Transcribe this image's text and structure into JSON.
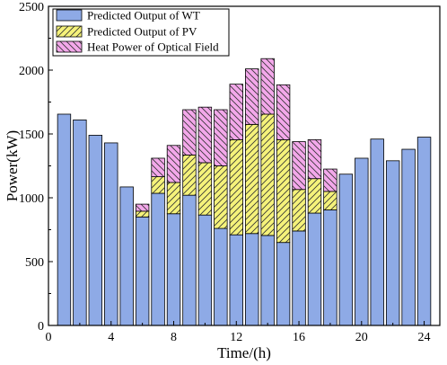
{
  "chart_data": {
    "type": "bar",
    "stacked": true,
    "title": "",
    "xlabel": "Time/(h)",
    "ylabel": "Power(kW)",
    "xlim": [
      0,
      25
    ],
    "ylim": [
      0,
      2500
    ],
    "xticks": [
      0,
      4,
      8,
      12,
      16,
      20,
      24
    ],
    "yticks": [
      0,
      500,
      1000,
      1500,
      2000,
      2500
    ],
    "grid": false,
    "legend_position": "top-left",
    "x": [
      1,
      2,
      3,
      4,
      5,
      6,
      7,
      8,
      9,
      10,
      11,
      12,
      13,
      14,
      15,
      16,
      17,
      18,
      19,
      20,
      21,
      22,
      23,
      24
    ],
    "series": [
      {
        "name": "Predicted Output of WT",
        "color": "#8eaae6",
        "pattern": "solid",
        "values": [
          1655,
          1610,
          1490,
          1430,
          1085,
          850,
          1035,
          875,
          1020,
          865,
          760,
          710,
          720,
          705,
          650,
          740,
          880,
          905,
          1185,
          1310,
          1460,
          1290,
          1380,
          1475
        ]
      },
      {
        "name": "Predicted Output of PV",
        "color": "#f5f27a",
        "pattern": "diagonal-hatch",
        "values": [
          0,
          0,
          0,
          0,
          0,
          45,
          130,
          245,
          315,
          410,
          490,
          745,
          855,
          950,
          805,
          325,
          270,
          145,
          0,
          0,
          0,
          0,
          0,
          0
        ]
      },
      {
        "name": "Heat Power of Optical Field",
        "color": "#f3a8ea",
        "pattern": "back-diagonal-hatch",
        "values": [
          0,
          0,
          0,
          0,
          0,
          55,
          145,
          290,
          355,
          435,
          440,
          435,
          435,
          435,
          430,
          375,
          305,
          175,
          0,
          0,
          0,
          0,
          0,
          0
        ]
      }
    ]
  }
}
